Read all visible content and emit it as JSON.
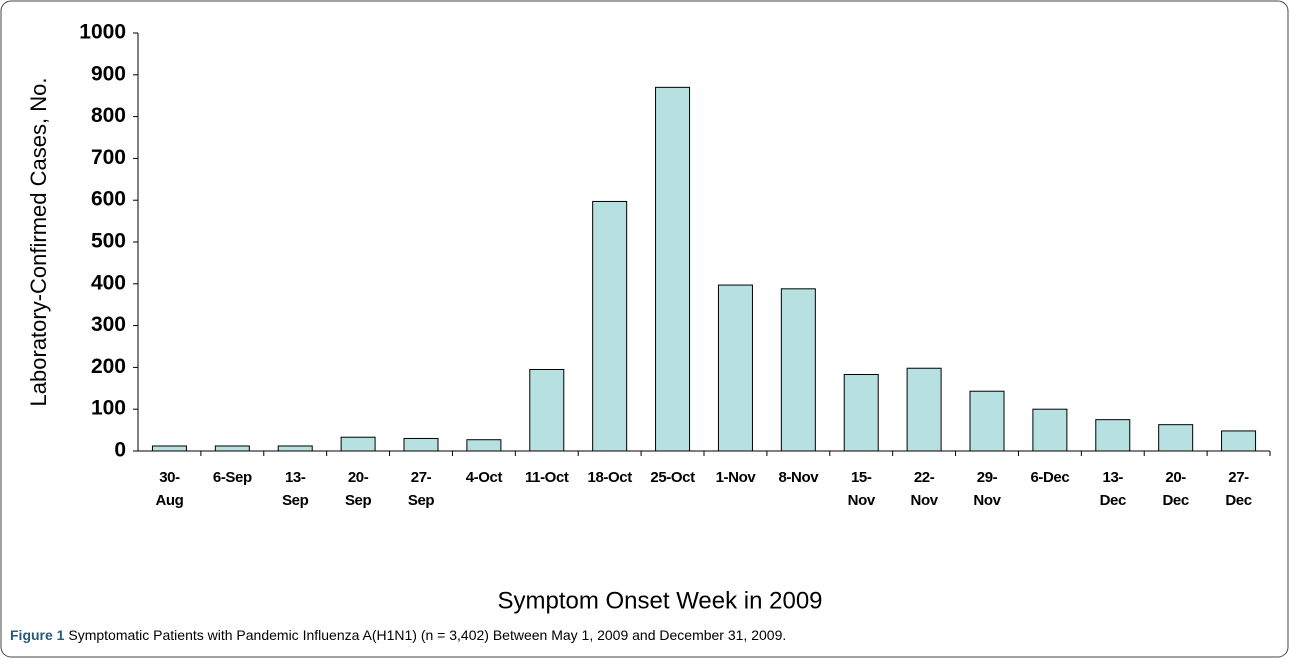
{
  "chart_data": {
    "type": "bar",
    "categories": [
      "30-Aug",
      "6-Sep",
      "13-Sep",
      "20-Sep",
      "27-Sep",
      "4-Oct",
      "11-Oct",
      "18-Oct",
      "25-Oct",
      "1-Nov",
      "8-Nov",
      "15-Nov",
      "22-Nov",
      "29-Nov",
      "6-Dec",
      "13-Dec",
      "20-Dec",
      "27-Dec"
    ],
    "values": [
      12,
      12,
      12,
      33,
      30,
      27,
      195,
      597,
      870,
      397,
      388,
      183,
      198,
      143,
      100,
      75,
      63,
      48
    ],
    "color": "#b7e0e0",
    "ylabel": "Laboratory-Confirmed Cases, No.",
    "xlabel": "Symptom Onset Week in 2009",
    "ylim": [
      0,
      1000
    ],
    "yticks": [
      0,
      100,
      200,
      300,
      400,
      500,
      600,
      700,
      800,
      900,
      1000
    ],
    "grid": false,
    "caption_label": "Figure 1",
    "caption": "Symptomatic Patients with Pandemic Influenza A(H1N1) (n = 3,402) Between May 1, 2009 and December 31, 2009."
  }
}
